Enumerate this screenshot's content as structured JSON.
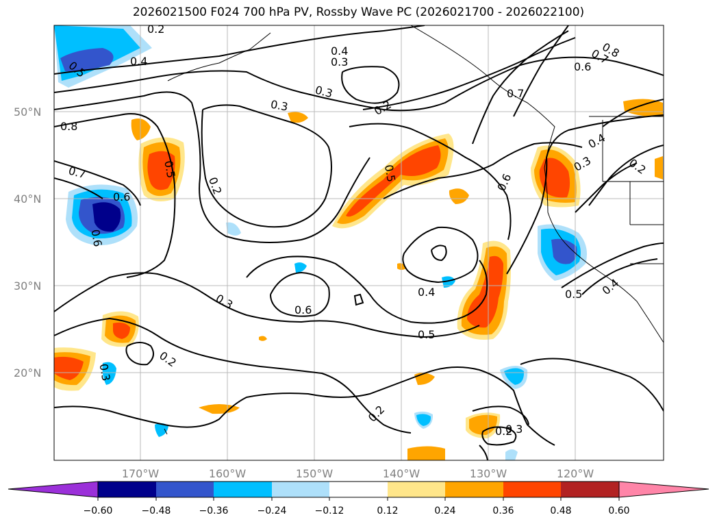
{
  "title": "2026021500 F024 700 hPa PV, Rossby Wave PC (2026021700 - 2026022100)",
  "map": {
    "projection": "cylindrical",
    "lon_range": [
      -180,
      -110
    ],
    "lat_range": [
      10,
      60
    ],
    "gridlines": true,
    "lat_ticks": [
      {
        "value": 20,
        "label": "20°N"
      },
      {
        "value": 30,
        "label": "30°N"
      },
      {
        "value": 40,
        "label": "40°N"
      },
      {
        "value": 50,
        "label": "50°N"
      }
    ],
    "lon_ticks": [
      {
        "value": -170,
        "label": "170°W"
      },
      {
        "value": -160,
        "label": "160°W"
      },
      {
        "value": -150,
        "label": "150°W"
      },
      {
        "value": -140,
        "label": "140°W"
      },
      {
        "value": -130,
        "label": "130°W"
      },
      {
        "value": -120,
        "label": "120°W"
      }
    ],
    "contour_labels": [
      "0.2",
      "0.4",
      "0.5",
      "0.3",
      "0.4",
      "0.3",
      "0.8",
      "0.7",
      "0.6",
      "0.3",
      "0.2",
      "0.3",
      "0.8",
      "0.7",
      "0.5",
      "0.5",
      "0.2",
      "0.6",
      "0.6",
      "0.4",
      "0.3",
      "0.2",
      "0.6",
      "0.3",
      "0.6",
      "0.4",
      "0.5",
      "0.5",
      "0.4",
      "0.2",
      "0.3",
      "0.2",
      "0.2",
      "0.7"
    ]
  },
  "colorbar": {
    "ticks": [
      "−0.60",
      "−0.48",
      "−0.36",
      "−0.24",
      "−0.12",
      "0.12",
      "0.24",
      "0.36",
      "0.48",
      "0.60"
    ],
    "colors": {
      "under": "#9b30d9",
      "neg_060": "#00008b",
      "neg_048": "#3355cc",
      "neg_036": "#00bfff",
      "neg_024": "#aee0fa",
      "neutral": "#ffffff",
      "pos_012": "#ffe68a",
      "pos_024": "#ffa500",
      "pos_036": "#ff4500",
      "pos_048": "#b22222",
      "over": "#ff85a8"
    }
  }
}
